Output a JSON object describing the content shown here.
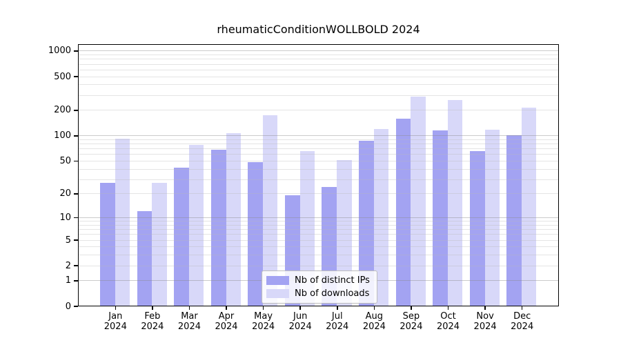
{
  "title": "rheumaticConditionWOLLBOLD 2024",
  "colors": {
    "bar_ips": "#a3a3f2",
    "bar_downloads": "#d8d8f9",
    "grid_major": "rgba(140,140,140,0.45)",
    "grid_minor": "rgba(185,185,185,0.38)",
    "axis": "#000000",
    "legend_border": "#bdbdbd",
    "legend_bg": "rgba(255,255,255,0.85)",
    "text": "#000000",
    "background": "#ffffff"
  },
  "legend": {
    "items": [
      {
        "label": "Nb of distinct IPs",
        "series_key": "bar_ips"
      },
      {
        "label": "Nb of downloads",
        "series_key": "bar_downloads"
      }
    ]
  },
  "chart_data": {
    "type": "bar",
    "title": "rheumaticConditionWOLLBOLD 2024",
    "x_categories": [
      "Jan",
      "Feb",
      "Mar",
      "Apr",
      "May",
      "Jun",
      "Jul",
      "Aug",
      "Sep",
      "Oct",
      "Nov",
      "Dec"
    ],
    "x_year": "2024",
    "series": [
      {
        "name": "Nb of distinct IPs",
        "color_key": "bar_ips",
        "values": [
          27,
          12,
          41,
          67,
          48,
          19,
          24,
          85,
          158,
          113,
          65,
          100
        ]
      },
      {
        "name": "Nb of downloads",
        "color_key": "bar_downloads",
        "values": [
          91,
          27,
          76,
          105,
          172,
          64,
          50,
          118,
          286,
          259,
          117,
          210
        ]
      }
    ],
    "y_ticks": [
      0,
      1,
      2,
      5,
      10,
      20,
      50,
      100,
      200,
      500,
      1000
    ],
    "y_scale": "log1p",
    "ylim": [
      0,
      1200
    ],
    "xlabel": "",
    "ylabel": "",
    "grid": "on",
    "legend_position": "lower center"
  }
}
